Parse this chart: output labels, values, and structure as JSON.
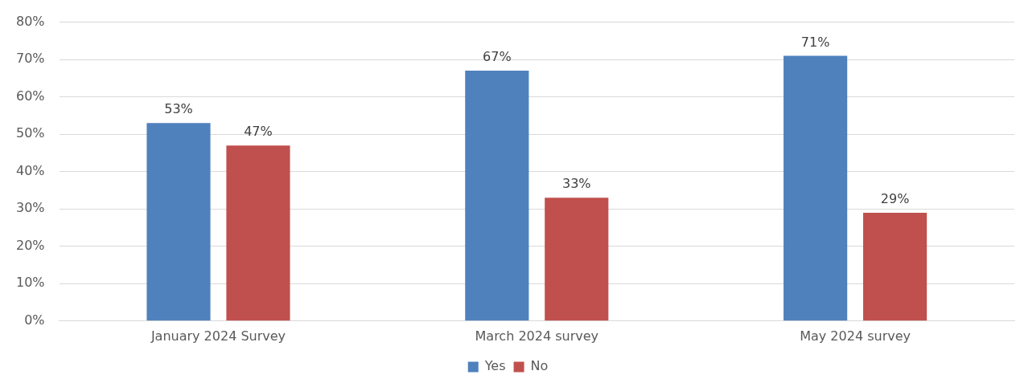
{
  "chart_data": {
    "type": "bar",
    "categories": [
      "January 2024 Survey",
      "March 2024 survey",
      "May 2024 survey"
    ],
    "series": [
      {
        "name": "Yes",
        "color": "#4f81bd",
        "values": [
          53,
          67,
          71
        ],
        "value_labels": [
          "53%",
          "67%",
          "71%"
        ]
      },
      {
        "name": "No",
        "color": "#c0504d",
        "values": [
          47,
          33,
          29
        ],
        "value_labels": [
          "47%",
          "33%",
          "29%"
        ]
      }
    ],
    "ylim": [
      0,
      80
    ],
    "yticks": [
      {
        "value": 0,
        "label": "0%"
      },
      {
        "value": 10,
        "label": "10%"
      },
      {
        "value": 20,
        "label": "20%"
      },
      {
        "value": 30,
        "label": "30%"
      },
      {
        "value": 40,
        "label": "40%"
      },
      {
        "value": 50,
        "label": "50%"
      },
      {
        "value": 60,
        "label": "60%"
      },
      {
        "value": 70,
        "label": "70%"
      },
      {
        "value": 80,
        "label": "80%"
      }
    ],
    "grid": "y",
    "legend": "bottom"
  }
}
